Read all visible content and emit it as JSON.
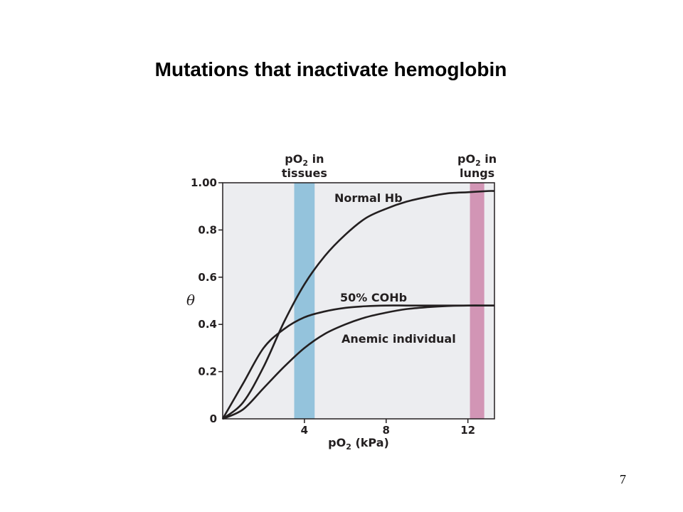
{
  "slide": {
    "title": "Mutations that inactivate hemoglobin",
    "page_number": "7"
  },
  "colors": {
    "plot_background": "#ecedf0",
    "tissues_band": "#94c3dc",
    "lungs_band": "#d295b5",
    "curve": "#231f20"
  },
  "chart_data": {
    "type": "line",
    "xlabel": {
      "main": "pO",
      "sub": "2",
      "rest": " (kPa)"
    },
    "ylabel": "θ",
    "xlim": [
      0,
      13.3
    ],
    "ylim": [
      0,
      1.0
    ],
    "xticks": [
      4,
      8,
      12
    ],
    "xtick_labels": [
      "4",
      "8",
      "12"
    ],
    "yticks": [
      0,
      0.2,
      0.4,
      0.6,
      0.8,
      1.0
    ],
    "ytick_labels": [
      "0",
      "0.2",
      "0.4",
      "0.6",
      "0.8",
      "1.00"
    ],
    "bands": [
      {
        "label_main": "pO",
        "label_sub": "2",
        "label_rest": " in",
        "label_line2": "tissues",
        "x0": 3.5,
        "x1": 4.5,
        "color": "#94c3dc"
      },
      {
        "label_main": "pO",
        "label_sub": "2",
        "label_rest": " in",
        "label_line2": "lungs",
        "x0": 12.1,
        "x1": 12.8,
        "color": "#d295b5"
      }
    ],
    "series": [
      {
        "name": "Normal Hb",
        "x": [
          0,
          1,
          2,
          3,
          4,
          5,
          6,
          7,
          8,
          9,
          10,
          11,
          12,
          13,
          13.3
        ],
        "y": [
          0,
          0.07,
          0.22,
          0.41,
          0.57,
          0.69,
          0.78,
          0.85,
          0.89,
          0.92,
          0.94,
          0.955,
          0.96,
          0.965,
          0.965
        ]
      },
      {
        "name": "50% COHb",
        "x": [
          0,
          1,
          2,
          3,
          4,
          5,
          6,
          7,
          8,
          9,
          10,
          11,
          12,
          13,
          13.3
        ],
        "y": [
          0,
          0.15,
          0.3,
          0.38,
          0.43,
          0.455,
          0.47,
          0.477,
          0.48,
          0.48,
          0.48,
          0.48,
          0.48,
          0.48,
          0.48
        ]
      },
      {
        "name": "Anemic individual",
        "x": [
          0,
          1,
          2,
          3,
          4,
          5,
          6,
          7,
          8,
          9,
          10,
          11,
          12,
          13,
          13.3
        ],
        "y": [
          0,
          0.04,
          0.13,
          0.22,
          0.3,
          0.36,
          0.4,
          0.43,
          0.45,
          0.465,
          0.473,
          0.478,
          0.48,
          0.48,
          0.48
        ]
      }
    ]
  }
}
